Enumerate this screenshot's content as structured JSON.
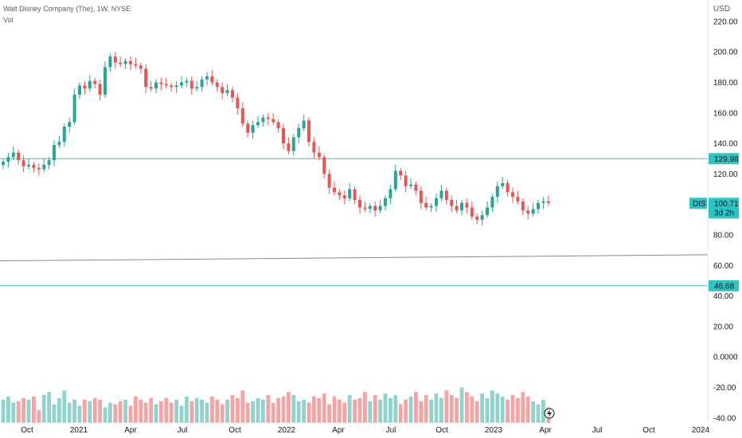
{
  "header": {
    "symbol_line": "Walt Disney Company (The), 1W, NYSE",
    "vol_label": "Vol"
  },
  "chart_data": {
    "type": "candlestick",
    "currency": "USD",
    "price_axis": {
      "ticks": [
        "220.00",
        "200.00",
        "180.00",
        "160.00",
        "140.00",
        "120.00",
        "100.00",
        "80.00",
        "60.00",
        "40.00",
        "20.00",
        "0.0000",
        "-20.00",
        "-40.00"
      ],
      "values": [
        220,
        200,
        180,
        160,
        140,
        120,
        100,
        80,
        60,
        40,
        20,
        0,
        -20,
        -40
      ]
    },
    "time_axis": [
      "Oct",
      "2021",
      "Apr",
      "Jul",
      "Oct",
      "2022",
      "Apr",
      "Jul",
      "Oct",
      "2023",
      "Apr",
      "Jul",
      "Oct",
      "2024"
    ],
    "horizontal_lines": [
      {
        "price": 129.98,
        "label": "129.98",
        "color": "#2ec4c4"
      },
      {
        "price": 46.68,
        "label": "46.68",
        "color": "#2ec4c4"
      }
    ],
    "trend_line": {
      "start_price": 63,
      "end_price": 67,
      "color": "#888888"
    },
    "last_price": {
      "symbol": "DIS",
      "price": "100.71",
      "countdown": "3d 2h",
      "value": 100.71
    },
    "up_color": "#26a69a",
    "down_color": "#ef5350",
    "vol_up_color": "#8fd3cc",
    "vol_down_color": "#f5a3a3",
    "close": [
      128,
      131,
      134,
      129,
      125,
      126,
      124,
      123,
      126,
      129,
      139,
      141,
      151,
      154,
      172,
      178,
      176,
      181,
      179,
      172,
      190,
      197,
      193,
      192,
      194,
      192,
      191,
      189,
      177,
      176,
      180,
      179,
      178,
      177,
      178,
      180,
      181,
      176,
      177,
      182,
      184,
      180,
      177,
      173,
      175,
      170,
      163,
      153,
      147,
      152,
      154,
      157,
      156,
      154,
      150,
      140,
      135,
      144,
      150,
      155,
      141,
      134,
      131,
      120,
      111,
      108,
      106,
      104,
      110,
      103,
      98,
      97,
      99,
      96,
      99,
      104,
      110,
      122,
      119,
      112,
      113,
      109,
      101,
      98,
      99,
      104,
      109,
      103,
      99,
      96,
      101,
      98,
      92,
      90,
      93,
      98,
      105,
      112,
      114,
      108,
      105,
      102,
      96,
      94,
      97,
      101,
      102,
      101
    ],
    "volume": [
      -28,
      -26,
      -30,
      -29,
      -27,
      -28,
      -26,
      -35,
      -25,
      -23,
      -31,
      -27,
      -22,
      -30,
      -28,
      -32,
      -28,
      -29,
      -27,
      -28,
      -33,
      -30,
      -31,
      -29,
      -28,
      -32,
      -26,
      -28,
      -30,
      -27,
      -31,
      -29,
      -27,
      -30,
      -28,
      -32,
      -26,
      -29,
      -27,
      -28,
      -30,
      -26,
      -28,
      -31,
      -28,
      -25,
      -27,
      -22,
      -30,
      -29,
      -27,
      -28,
      -25,
      -30,
      -27,
      -26,
      -23,
      -25,
      -29,
      -28,
      -30,
      -26,
      -27,
      -24,
      -31,
      -26,
      -28,
      -30,
      -25,
      -28,
      -27,
      -23,
      -29,
      -25,
      -28,
      -24,
      -27,
      -25,
      -31,
      -28,
      -26,
      -23,
      -29,
      -25,
      -28,
      -24,
      -27,
      -22,
      -25,
      -27,
      -20,
      -23,
      -26,
      -29,
      -24,
      -27,
      -22,
      -24,
      -26,
      -28,
      -25,
      -27,
      -23,
      -26,
      -29,
      -31,
      -28,
      -33
    ]
  }
}
